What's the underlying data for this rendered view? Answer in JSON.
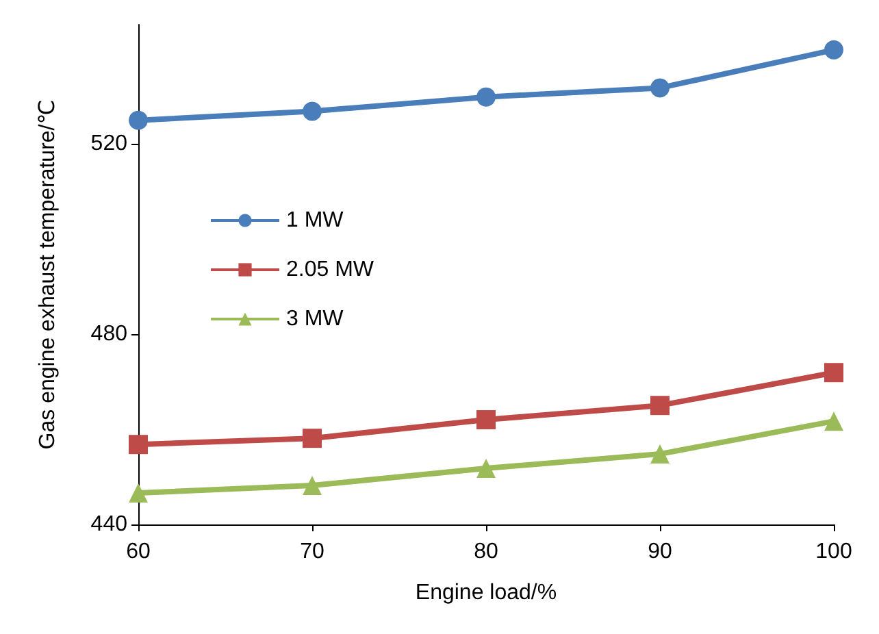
{
  "chart_data": {
    "type": "line",
    "xlabel": "Engine load/%",
    "ylabel": "Gas engine exhaust temperature/℃",
    "x": [
      60,
      70,
      80,
      90,
      100
    ],
    "xlim": [
      60,
      100
    ],
    "xticks": [
      60,
      70,
      80,
      90,
      100
    ],
    "ylim": [
      440,
      545
    ],
    "yticks": [
      440,
      480,
      520
    ],
    "grid": false,
    "legend": "left",
    "series": [
      {
        "name": "1 MW",
        "color": "#4a7ebb",
        "marker": "circle",
        "values": [
          524.9,
          526.8,
          529.8,
          531.7,
          539.7
        ]
      },
      {
        "name": "2.05 MW",
        "color": "#be4b48",
        "marker": "square",
        "values": [
          456.8,
          458.1,
          462,
          465,
          471.9
        ]
      },
      {
        "name": "3 MW",
        "color": "#9bbb59",
        "marker": "triangle",
        "values": [
          446.6,
          448.2,
          451.8,
          454.8,
          461.7
        ]
      }
    ]
  }
}
